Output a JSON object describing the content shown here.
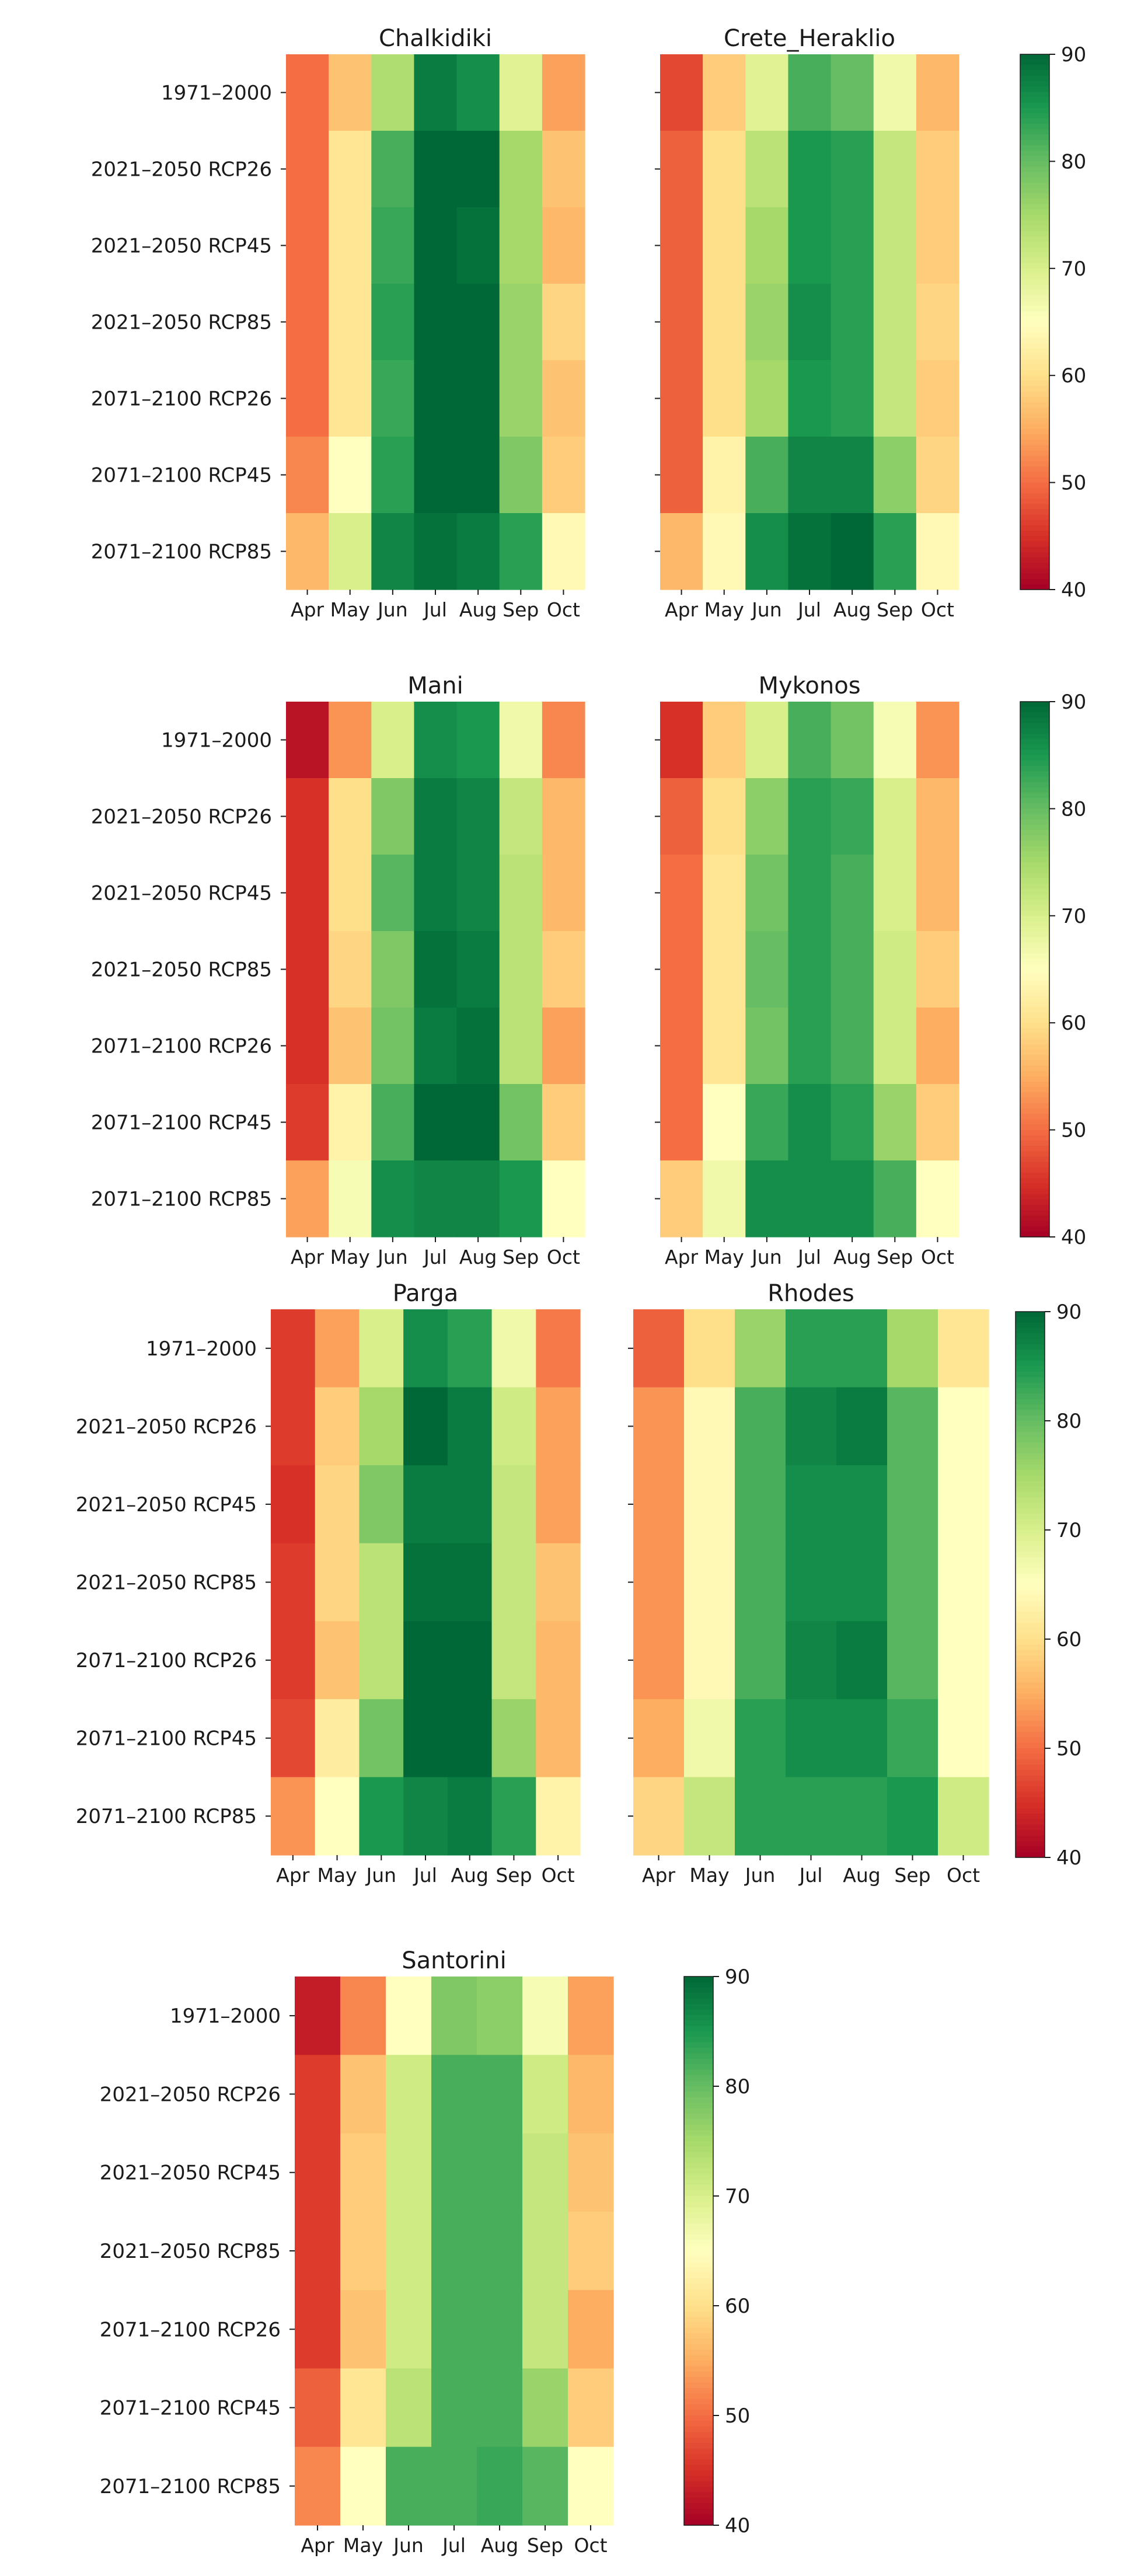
{
  "chart_data": {
    "type": "heatmap",
    "rows": [
      "1971–2000",
      "2021–2050 RCP26",
      "2021–2050 RCP45",
      "2021–2050 RCP85",
      "2071–2100 RCP26",
      "2071–2100 RCP45",
      "2071–2100 RCP85"
    ],
    "columns": [
      "Apr",
      "May",
      "Jun",
      "Jul",
      "Aug",
      "Sep",
      "Oct"
    ],
    "colorbar": {
      "min": 40,
      "max": 90,
      "ticks": [
        "40",
        "50",
        "60",
        "70",
        "80",
        "90"
      ],
      "colormap": "RdYlGn"
    },
    "panels": [
      {
        "title": "Chalkidiki",
        "values": [
          [
            50,
            57,
            74,
            88,
            86,
            69,
            54
          ],
          [
            50,
            61,
            82,
            90,
            90,
            75,
            57
          ],
          [
            50,
            61,
            83,
            90,
            89,
            75,
            56
          ],
          [
            50,
            61,
            84,
            90,
            90,
            76,
            59
          ],
          [
            50,
            61,
            83,
            90,
            90,
            76,
            57
          ],
          [
            52,
            65,
            84,
            90,
            90,
            78,
            58
          ],
          [
            56,
            70,
            87,
            89,
            88,
            84,
            64
          ]
        ]
      },
      {
        "title": "Crete_Heraklio",
        "values": [
          [
            47,
            58,
            69,
            82,
            80,
            67,
            56
          ],
          [
            49,
            60,
            73,
            85,
            84,
            72,
            58
          ],
          [
            49,
            60,
            75,
            85,
            84,
            72,
            58
          ],
          [
            49,
            60,
            76,
            86,
            84,
            72,
            59
          ],
          [
            49,
            60,
            75,
            85,
            84,
            72,
            58
          ],
          [
            49,
            63,
            82,
            87,
            87,
            77,
            59
          ],
          [
            56,
            64,
            86,
            89,
            90,
            84,
            64
          ]
        ]
      },
      {
        "title": "Mani",
        "values": [
          [
            42,
            53,
            70,
            86,
            85,
            67,
            52
          ],
          [
            45,
            60,
            78,
            88,
            87,
            72,
            56
          ],
          [
            45,
            60,
            81,
            88,
            87,
            73,
            56
          ],
          [
            45,
            59,
            78,
            89,
            88,
            73,
            58
          ],
          [
            45,
            57,
            79,
            88,
            89,
            73,
            54
          ],
          [
            46,
            63,
            82,
            90,
            90,
            79,
            58
          ],
          [
            54,
            66,
            86,
            87,
            87,
            85,
            65
          ]
        ]
      },
      {
        "title": "Mykonos",
        "values": [
          [
            45,
            58,
            70,
            82,
            79,
            66,
            53
          ],
          [
            49,
            60,
            77,
            84,
            83,
            70,
            56
          ],
          [
            50,
            61,
            79,
            84,
            82,
            70,
            56
          ],
          [
            50,
            61,
            80,
            84,
            82,
            71,
            58
          ],
          [
            50,
            61,
            79,
            84,
            82,
            71,
            55
          ],
          [
            50,
            65,
            83,
            86,
            84,
            76,
            58
          ],
          [
            58,
            67,
            86,
            86,
            86,
            82,
            65
          ]
        ]
      },
      {
        "title": "Parga",
        "values": [
          [
            46,
            54,
            70,
            86,
            84,
            67,
            51
          ],
          [
            46,
            58,
            75,
            90,
            88,
            71,
            54
          ],
          [
            45,
            59,
            78,
            88,
            88,
            72,
            54
          ],
          [
            46,
            59,
            73,
            89,
            89,
            72,
            57
          ],
          [
            46,
            57,
            73,
            90,
            90,
            72,
            56
          ],
          [
            47,
            62,
            79,
            90,
            90,
            76,
            56
          ],
          [
            53,
            65,
            85,
            87,
            88,
            84,
            63
          ]
        ]
      },
      {
        "title": "Rhodes",
        "values": [
          [
            49,
            60,
            76,
            84,
            84,
            75,
            61
          ],
          [
            53,
            64,
            82,
            87,
            88,
            81,
            65
          ],
          [
            53,
            64,
            82,
            86,
            86,
            81,
            65
          ],
          [
            53,
            64,
            82,
            86,
            86,
            81,
            65
          ],
          [
            53,
            64,
            82,
            87,
            88,
            81,
            65
          ],
          [
            55,
            67,
            84,
            86,
            86,
            83,
            65
          ],
          [
            59,
            72,
            84,
            84,
            84,
            85,
            71
          ]
        ]
      },
      {
        "title": "Santorini",
        "values": [
          [
            43,
            52,
            65,
            78,
            77,
            66,
            54
          ],
          [
            46,
            57,
            71,
            82,
            82,
            71,
            56
          ],
          [
            46,
            58,
            71,
            82,
            82,
            72,
            57
          ],
          [
            46,
            58,
            71,
            82,
            82,
            72,
            58
          ],
          [
            46,
            57,
            71,
            82,
            82,
            72,
            55
          ],
          [
            49,
            61,
            73,
            82,
            82,
            76,
            58
          ],
          [
            52,
            65,
            82,
            82,
            83,
            81,
            65
          ]
        ]
      }
    ]
  }
}
